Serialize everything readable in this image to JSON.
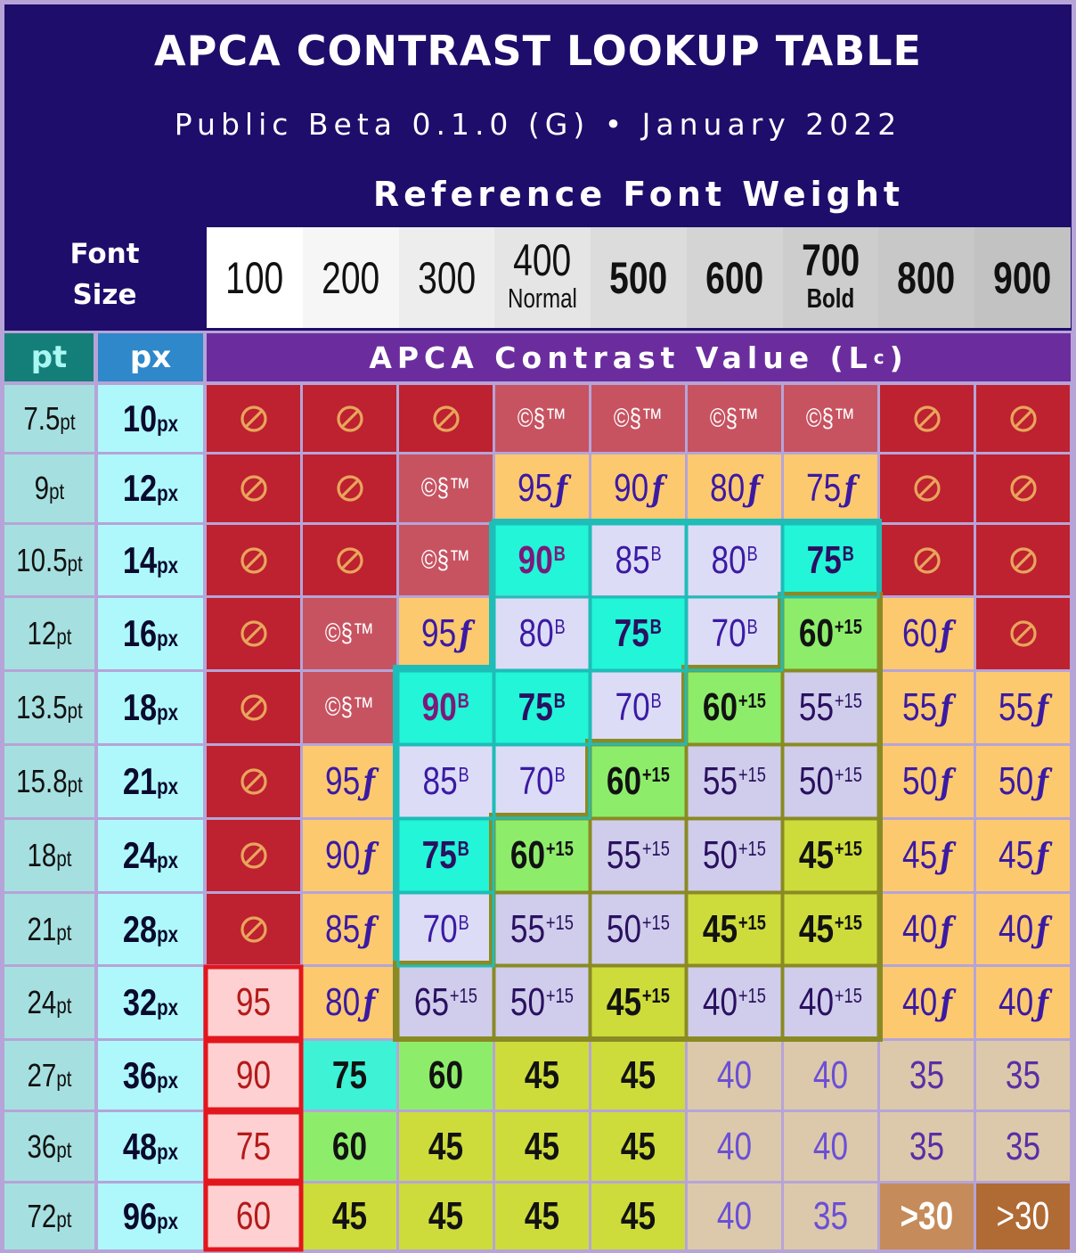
{
  "title": "APCA CONTRAST LOOKUP TABLE",
  "subtitle": "Public Beta 0.1.0 (G) • January 2022",
  "reference_font_weight_label": "Reference Font Weight",
  "font_size_label_line1": "Font",
  "font_size_label_line2": "Size",
  "pt_header": "pt",
  "px_header": "px",
  "apca_value_header": "APCA Contrast Value (L",
  "apca_value_header_sup": "c",
  "apca_value_header_end": ")",
  "weights": [
    {
      "num": "100",
      "sub": ""
    },
    {
      "num": "200",
      "sub": ""
    },
    {
      "num": "300",
      "sub": ""
    },
    {
      "num": "400",
      "sub": "Normal"
    },
    {
      "num": "500",
      "sub": ""
    },
    {
      "num": "600",
      "sub": ""
    },
    {
      "num": "700",
      "sub": "Bold"
    },
    {
      "num": "800",
      "sub": ""
    },
    {
      "num": "900",
      "sub": ""
    }
  ],
  "pt_unit": "pt",
  "px_unit": "px",
  "rows": [
    {
      "pt": "7.5",
      "px": "10",
      "cells": [
        {
          "v": "",
          "s": "prohib"
        },
        {
          "v": "",
          "s": "prohib"
        },
        {
          "v": "",
          "s": "prohib"
        },
        {
          "v": "©§™",
          "s": "cst"
        },
        {
          "v": "©§™",
          "s": "cst"
        },
        {
          "v": "©§™",
          "s": "cst"
        },
        {
          "v": "©§™",
          "s": "cst"
        },
        {
          "v": "",
          "s": "prohib"
        },
        {
          "v": "",
          "s": "prohib"
        }
      ]
    },
    {
      "pt": "9",
      "px": "12",
      "cells": [
        {
          "v": "",
          "s": "prohib"
        },
        {
          "v": "",
          "s": "prohib"
        },
        {
          "v": "©§™",
          "s": "cst"
        },
        {
          "v": "95",
          "f": "ƒ",
          "s": "fluent"
        },
        {
          "v": "90",
          "f": "ƒ",
          "s": "fluent"
        },
        {
          "v": "80",
          "f": "ƒ",
          "s": "fluent"
        },
        {
          "v": "75",
          "f": "ƒ",
          "s": "fluent"
        },
        {
          "v": "",
          "s": "prohib"
        },
        {
          "v": "",
          "s": "prohib"
        }
      ]
    },
    {
      "pt": "10.5",
      "px": "14",
      "cells": [
        {
          "v": "",
          "s": "prohib"
        },
        {
          "v": "",
          "s": "prohib"
        },
        {
          "v": "©§™",
          "s": "cst"
        },
        {
          "v": "90",
          "sup": "B",
          "s": "bmag"
        },
        {
          "v": "85",
          "sup": "B",
          "s": "bpur"
        },
        {
          "v": "80",
          "sup": "B",
          "s": "bpur"
        },
        {
          "v": "75",
          "sup": "B",
          "s": "bcyan"
        },
        {
          "v": "",
          "s": "prohib"
        },
        {
          "v": "",
          "s": "prohib"
        }
      ]
    },
    {
      "pt": "12",
      "px": "16",
      "cells": [
        {
          "v": "",
          "s": "prohib"
        },
        {
          "v": "©§™",
          "s": "cst"
        },
        {
          "v": "95",
          "f": "ƒ",
          "s": "fluent"
        },
        {
          "v": "80",
          "sup": "B",
          "s": "bpur"
        },
        {
          "v": "75",
          "sup": "B",
          "s": "bcyan"
        },
        {
          "v": "70",
          "sup": "B",
          "s": "bpur"
        },
        {
          "v": "60",
          "sup": "+15",
          "s": "bgreen"
        },
        {
          "v": "60",
          "f": "ƒ",
          "s": "fluent"
        },
        {
          "v": "",
          "s": "prohib"
        }
      ]
    },
    {
      "pt": "13.5",
      "px": "18",
      "cells": [
        {
          "v": "",
          "s": "prohib"
        },
        {
          "v": "©§™",
          "s": "cst"
        },
        {
          "v": "90",
          "sup": "B",
          "s": "bmag"
        },
        {
          "v": "75",
          "sup": "B",
          "s": "bcyan"
        },
        {
          "v": "70",
          "sup": "B",
          "s": "bpur"
        },
        {
          "v": "60",
          "sup": "+15",
          "s": "bgreen"
        },
        {
          "v": "55",
          "sup": "+15",
          "s": "blav"
        },
        {
          "v": "55",
          "f": "ƒ",
          "s": "fluent"
        },
        {
          "v": "55",
          "f": "ƒ",
          "s": "fluent"
        }
      ]
    },
    {
      "pt": "15.8",
      "px": "21",
      "cells": [
        {
          "v": "",
          "s": "prohib"
        },
        {
          "v": "95",
          "f": "ƒ",
          "s": "fluent"
        },
        {
          "v": "85",
          "sup": "B",
          "s": "bpur"
        },
        {
          "v": "70",
          "sup": "B",
          "s": "bpur"
        },
        {
          "v": "60",
          "sup": "+15",
          "s": "bgreen"
        },
        {
          "v": "55",
          "sup": "+15",
          "s": "blav"
        },
        {
          "v": "50",
          "sup": "+15",
          "s": "blav"
        },
        {
          "v": "50",
          "f": "ƒ",
          "s": "fluent"
        },
        {
          "v": "50",
          "f": "ƒ",
          "s": "fluent"
        }
      ]
    },
    {
      "pt": "18",
      "px": "24",
      "cells": [
        {
          "v": "",
          "s": "prohib"
        },
        {
          "v": "90",
          "f": "ƒ",
          "s": "fluent"
        },
        {
          "v": "75",
          "sup": "B",
          "s": "bcyan"
        },
        {
          "v": "60",
          "sup": "+15",
          "s": "bgreen"
        },
        {
          "v": "55",
          "sup": "+15",
          "s": "blav"
        },
        {
          "v": "50",
          "sup": "+15",
          "s": "blav"
        },
        {
          "v": "45",
          "sup": "+15",
          "s": "bylg"
        },
        {
          "v": "45",
          "f": "ƒ",
          "s": "fluent"
        },
        {
          "v": "45",
          "f": "ƒ",
          "s": "fluent"
        }
      ]
    },
    {
      "pt": "21",
      "px": "28",
      "cells": [
        {
          "v": "",
          "s": "prohib"
        },
        {
          "v": "85",
          "f": "ƒ",
          "s": "fluent"
        },
        {
          "v": "70",
          "sup": "B",
          "s": "bpur"
        },
        {
          "v": "55",
          "sup": "+15",
          "s": "blav"
        },
        {
          "v": "50",
          "sup": "+15",
          "s": "blav"
        },
        {
          "v": "45",
          "sup": "+15",
          "s": "bylg"
        },
        {
          "v": "45",
          "sup": "+15",
          "s": "bylg"
        },
        {
          "v": "40",
          "f": "ƒ",
          "s": "fluent"
        },
        {
          "v": "40",
          "f": "ƒ",
          "s": "fluent"
        }
      ]
    },
    {
      "pt": "24",
      "px": "32",
      "cells": [
        {
          "v": "95",
          "s": "pink"
        },
        {
          "v": "80",
          "f": "ƒ",
          "s": "fluent"
        },
        {
          "v": "65",
          "sup": "+15",
          "s": "blav"
        },
        {
          "v": "50",
          "sup": "+15",
          "s": "blav"
        },
        {
          "v": "45",
          "sup": "+15",
          "s": "bylg"
        },
        {
          "v": "40",
          "sup": "+15",
          "s": "blav"
        },
        {
          "v": "40",
          "sup": "+15",
          "s": "blav"
        },
        {
          "v": "40",
          "f": "ƒ",
          "s": "fluent"
        },
        {
          "v": "40",
          "f": "ƒ",
          "s": "fluent"
        }
      ]
    },
    {
      "pt": "27",
      "px": "36",
      "cells": [
        {
          "v": "90",
          "s": "pink"
        },
        {
          "v": "75",
          "s": "gcyan"
        },
        {
          "v": "60",
          "s": "ggreen"
        },
        {
          "v": "45",
          "s": "gylg"
        },
        {
          "v": "45",
          "s": "gylg"
        },
        {
          "v": "40",
          "s": "gtan"
        },
        {
          "v": "40",
          "s": "gtan"
        },
        {
          "v": "35",
          "s": "gtan2"
        },
        {
          "v": "35",
          "s": "gtan2"
        }
      ]
    },
    {
      "pt": "36",
      "px": "48",
      "cells": [
        {
          "v": "75",
          "s": "pink"
        },
        {
          "v": "60",
          "s": "ggreen"
        },
        {
          "v": "45",
          "s": "gylg"
        },
        {
          "v": "45",
          "s": "gylg"
        },
        {
          "v": "45",
          "s": "gylg"
        },
        {
          "v": "40",
          "s": "gtan"
        },
        {
          "v": "40",
          "s": "gtan"
        },
        {
          "v": "35",
          "s": "gtan2"
        },
        {
          "v": "35",
          "s": "gtan2"
        }
      ]
    },
    {
      "pt": "72",
      "px": "96",
      "cells": [
        {
          "v": "60",
          "s": "pink"
        },
        {
          "v": "45",
          "s": "gylg"
        },
        {
          "v": "45",
          "s": "gylg"
        },
        {
          "v": "45",
          "s": "gylg"
        },
        {
          "v": "45",
          "s": "gylg"
        },
        {
          "v": "40",
          "s": "gtan"
        },
        {
          "v": "35",
          "s": "gtan"
        },
        {
          "v": ">30",
          "s": "brw1"
        },
        {
          "v": ">30",
          "s": "brw2"
        }
      ]
    }
  ],
  "colors": {
    "header_bg": "#1f0d6b",
    "apca_header_bg": "#6b2d9e",
    "prohibited": "#be2130",
    "copyright_only": "#c75361",
    "fluent": "#fcc96f",
    "body_text": "#dcdcf7",
    "cyan": "#22f5d8",
    "green": "#8ded6b",
    "yellow_green": "#cddc3b",
    "tan": "#dcc9ab",
    "pink": "#ffd0d1",
    "teal_outline": "#1ebdb7",
    "olive_outline": "#8a8a24",
    "red_outline": "#e3151d"
  },
  "icons": {
    "prohibited": "prohibited-icon"
  }
}
